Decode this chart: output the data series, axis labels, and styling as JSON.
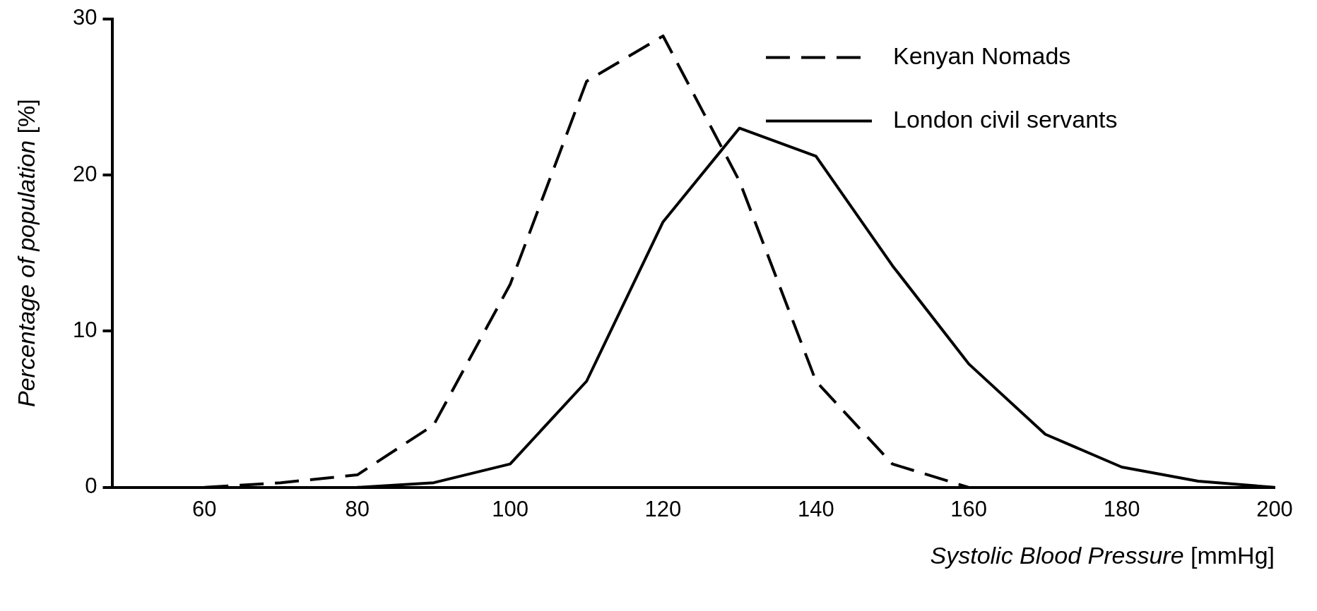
{
  "chart_data": {
    "type": "line",
    "xlabel": "Systolic Blood Pressure [mmHg]",
    "ylabel": "Percentage of population [%]",
    "xlim": [
      48,
      200
    ],
    "xticks": [
      60,
      80,
      100,
      120,
      140,
      160,
      180,
      200
    ],
    "ylim": [
      0,
      30
    ],
    "yticks": [
      0,
      10,
      20,
      30
    ],
    "grid": false,
    "legend": "top right",
    "marker": "none",
    "series": [
      {
        "name": "Kenyan Nomads",
        "color": "#000000",
        "line_style": "dashed",
        "x": [
          60,
          70,
          80,
          90,
          100,
          110,
          120,
          130,
          140,
          150,
          160
        ],
        "values": [
          0,
          0.3,
          0.8,
          4,
          13,
          26,
          28.9,
          19.6,
          6.8,
          1.5,
          0
        ]
      },
      {
        "name": "London civil servants",
        "color": "#000000",
        "line_style": "solid",
        "x": [
          80,
          90,
          100,
          110,
          120,
          130,
          140,
          150,
          160,
          170,
          180,
          190,
          200
        ],
        "values": [
          0,
          0.3,
          1.5,
          6.8,
          17,
          23,
          21.2,
          14.2,
          7.9,
          3.4,
          1.3,
          0.4,
          0
        ]
      }
    ]
  }
}
